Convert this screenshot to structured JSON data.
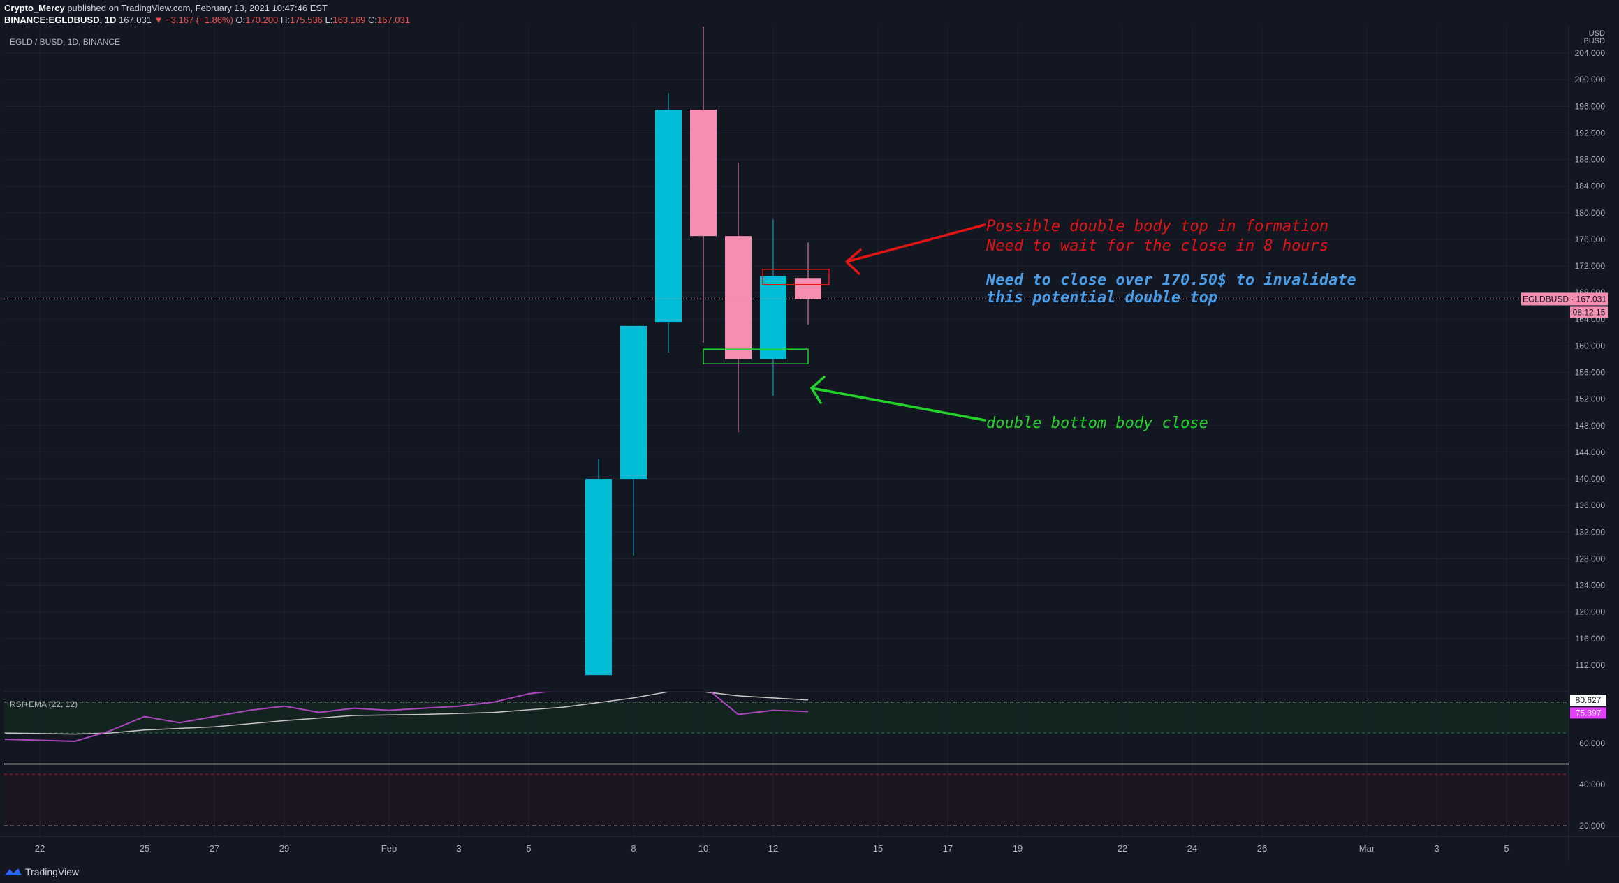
{
  "header": {
    "author": "Crypto_Mercy",
    "published": "published on TradingView.com, February 13, 2021 10:47:46 EST",
    "symbol": "BINANCE:EGLDBUSD, 1D",
    "last": "167.031",
    "change": "▼ −3.167 (−1.86%)",
    "o_label": "O:",
    "o": "170.200",
    "h_label": "H:",
    "h": "175.536",
    "l_label": "L:",
    "l": "163.169",
    "c_label": "C:",
    "c": "167.031"
  },
  "chart_data": {
    "type": "candlestick",
    "title": "EGLD / BUSD, 1D, BINANCE",
    "price_axis_unit": "USD\nBUSD",
    "ylim": [
      108,
      208
    ],
    "price_ticks": [
      "204.000",
      "200.000",
      "196.000",
      "192.000",
      "188.000",
      "184.000",
      "180.000",
      "176.000",
      "172.000",
      "168.000",
      "164.000",
      "160.000",
      "156.000",
      "152.000",
      "148.000",
      "144.000",
      "140.000",
      "136.000",
      "132.000",
      "128.000",
      "124.000",
      "120.000",
      "116.000",
      "112.000"
    ],
    "x_ticks": [
      {
        "label": "22",
        "day": -10
      },
      {
        "label": "25",
        "day": -7
      },
      {
        "label": "27",
        "day": -5
      },
      {
        "label": "29",
        "day": -3
      },
      {
        "label": "Feb",
        "day": 0
      },
      {
        "label": "3",
        "day": 2
      },
      {
        "label": "5",
        "day": 4
      },
      {
        "label": "8",
        "day": 7
      },
      {
        "label": "10",
        "day": 9
      },
      {
        "label": "12",
        "day": 11
      },
      {
        "label": "15",
        "day": 14
      },
      {
        "label": "17",
        "day": 16
      },
      {
        "label": "19",
        "day": 18
      },
      {
        "label": "22",
        "day": 21
      },
      {
        "label": "24",
        "day": 23
      },
      {
        "label": "26",
        "day": 25
      },
      {
        "label": "Mar",
        "day": 28
      },
      {
        "label": "3",
        "day": 30
      },
      {
        "label": "5",
        "day": 32
      }
    ],
    "candles": [
      {
        "date": "2021-02-07",
        "day": 6,
        "o": 110.5,
        "h": 143.0,
        "l": 110.5,
        "c": 140.0
      },
      {
        "date": "2021-02-08",
        "day": 7,
        "o": 140.0,
        "h": 163.0,
        "l": 128.5,
        "c": 163.0
      },
      {
        "date": "2021-02-09",
        "day": 8,
        "o": 163.5,
        "h": 198.0,
        "l": 159.0,
        "c": 195.5
      },
      {
        "date": "2021-02-10",
        "day": 9,
        "o": 195.5,
        "h": 208.0,
        "l": 160.5,
        "c": 176.5
      },
      {
        "date": "2021-02-11",
        "day": 10,
        "o": 176.5,
        "h": 187.5,
        "l": 147.0,
        "c": 158.0
      },
      {
        "date": "2021-02-12",
        "day": 11,
        "o": 158.0,
        "h": 179.0,
        "l": 152.5,
        "c": 170.5
      },
      {
        "date": "2021-02-13",
        "day": 12,
        "o": 170.2,
        "h": 175.536,
        "l": 163.169,
        "c": 167.031
      }
    ],
    "last_price_label": "EGLDBUSD",
    "last_price": "167.031",
    "countdown": "08:12:15",
    "rsi": {
      "title": "RSI+EMA (22, 12)",
      "ylim": [
        15,
        85
      ],
      "ticks": [
        "60.000",
        "40.000",
        "20.000"
      ],
      "levels": [
        80,
        65,
        45,
        20
      ],
      "rsi_value": "75.397",
      "ema_value": "80.627",
      "rsi_series": [
        {
          "day": -11,
          "v": 62
        },
        {
          "day": -9,
          "v": 61
        },
        {
          "day": -8,
          "v": 66
        },
        {
          "day": -7,
          "v": 73
        },
        {
          "day": -6,
          "v": 70
        },
        {
          "day": -5,
          "v": 73
        },
        {
          "day": -4,
          "v": 76
        },
        {
          "day": -3,
          "v": 78
        },
        {
          "day": -2,
          "v": 75
        },
        {
          "day": -1,
          "v": 77
        },
        {
          "day": 0,
          "v": 76
        },
        {
          "day": 1,
          "v": 77
        },
        {
          "day": 2,
          "v": 78
        },
        {
          "day": 3,
          "v": 80
        },
        {
          "day": 4,
          "v": 84
        },
        {
          "day": 5,
          "v": 86
        },
        {
          "day": 6,
          "v": 92
        },
        {
          "day": 7,
          "v": 96
        },
        {
          "day": 8,
          "v": 99
        },
        {
          "day": 9,
          "v": 88
        },
        {
          "day": 10,
          "v": 74
        },
        {
          "day": 11,
          "v": 76
        },
        {
          "day": 12,
          "v": 75.4
        }
      ],
      "ema_series": [
        {
          "day": -11,
          "v": 65
        },
        {
          "day": -9,
          "v": 64.5
        },
        {
          "day": -8,
          "v": 65
        },
        {
          "day": -7,
          "v": 66.5
        },
        {
          "day": -5,
          "v": 68
        },
        {
          "day": -3,
          "v": 71
        },
        {
          "day": -1,
          "v": 73.5
        },
        {
          "day": 1,
          "v": 74
        },
        {
          "day": 3,
          "v": 75
        },
        {
          "day": 5,
          "v": 77.5
        },
        {
          "day": 7,
          "v": 82
        },
        {
          "day": 8,
          "v": 85
        },
        {
          "day": 9,
          "v": 85
        },
        {
          "day": 10,
          "v": 83
        },
        {
          "day": 11,
          "v": 82
        },
        {
          "day": 12,
          "v": 81
        }
      ]
    }
  },
  "annotations": {
    "top_line1": "Possible double body top in formation",
    "top_line2": "Need to wait for the close in 8 hours",
    "blue_line1": "Need to close over 170.50$ to invalidate",
    "blue_line2": "this potential double top",
    "bottom": "double bottom body close",
    "top_color": "#e21414",
    "blue_color": "#4a9ee8",
    "bottom_color": "#22d42a",
    "red_box": {
      "day_from": 10.7,
      "day_to": 12.6,
      "price_top": 171.5,
      "price_bottom": 169.2
    },
    "green_box": {
      "day_from": 9.0,
      "day_to": 12.0,
      "price_top": 159.5,
      "price_bottom": 157.3
    }
  },
  "footer": {
    "brand": "TradingView"
  },
  "colors": {
    "up": "#00bcd4",
    "down": "#f48fb1",
    "background": "#131722",
    "rsi_line": "#ab47bc",
    "ema_line": "#c7c7c7"
  }
}
